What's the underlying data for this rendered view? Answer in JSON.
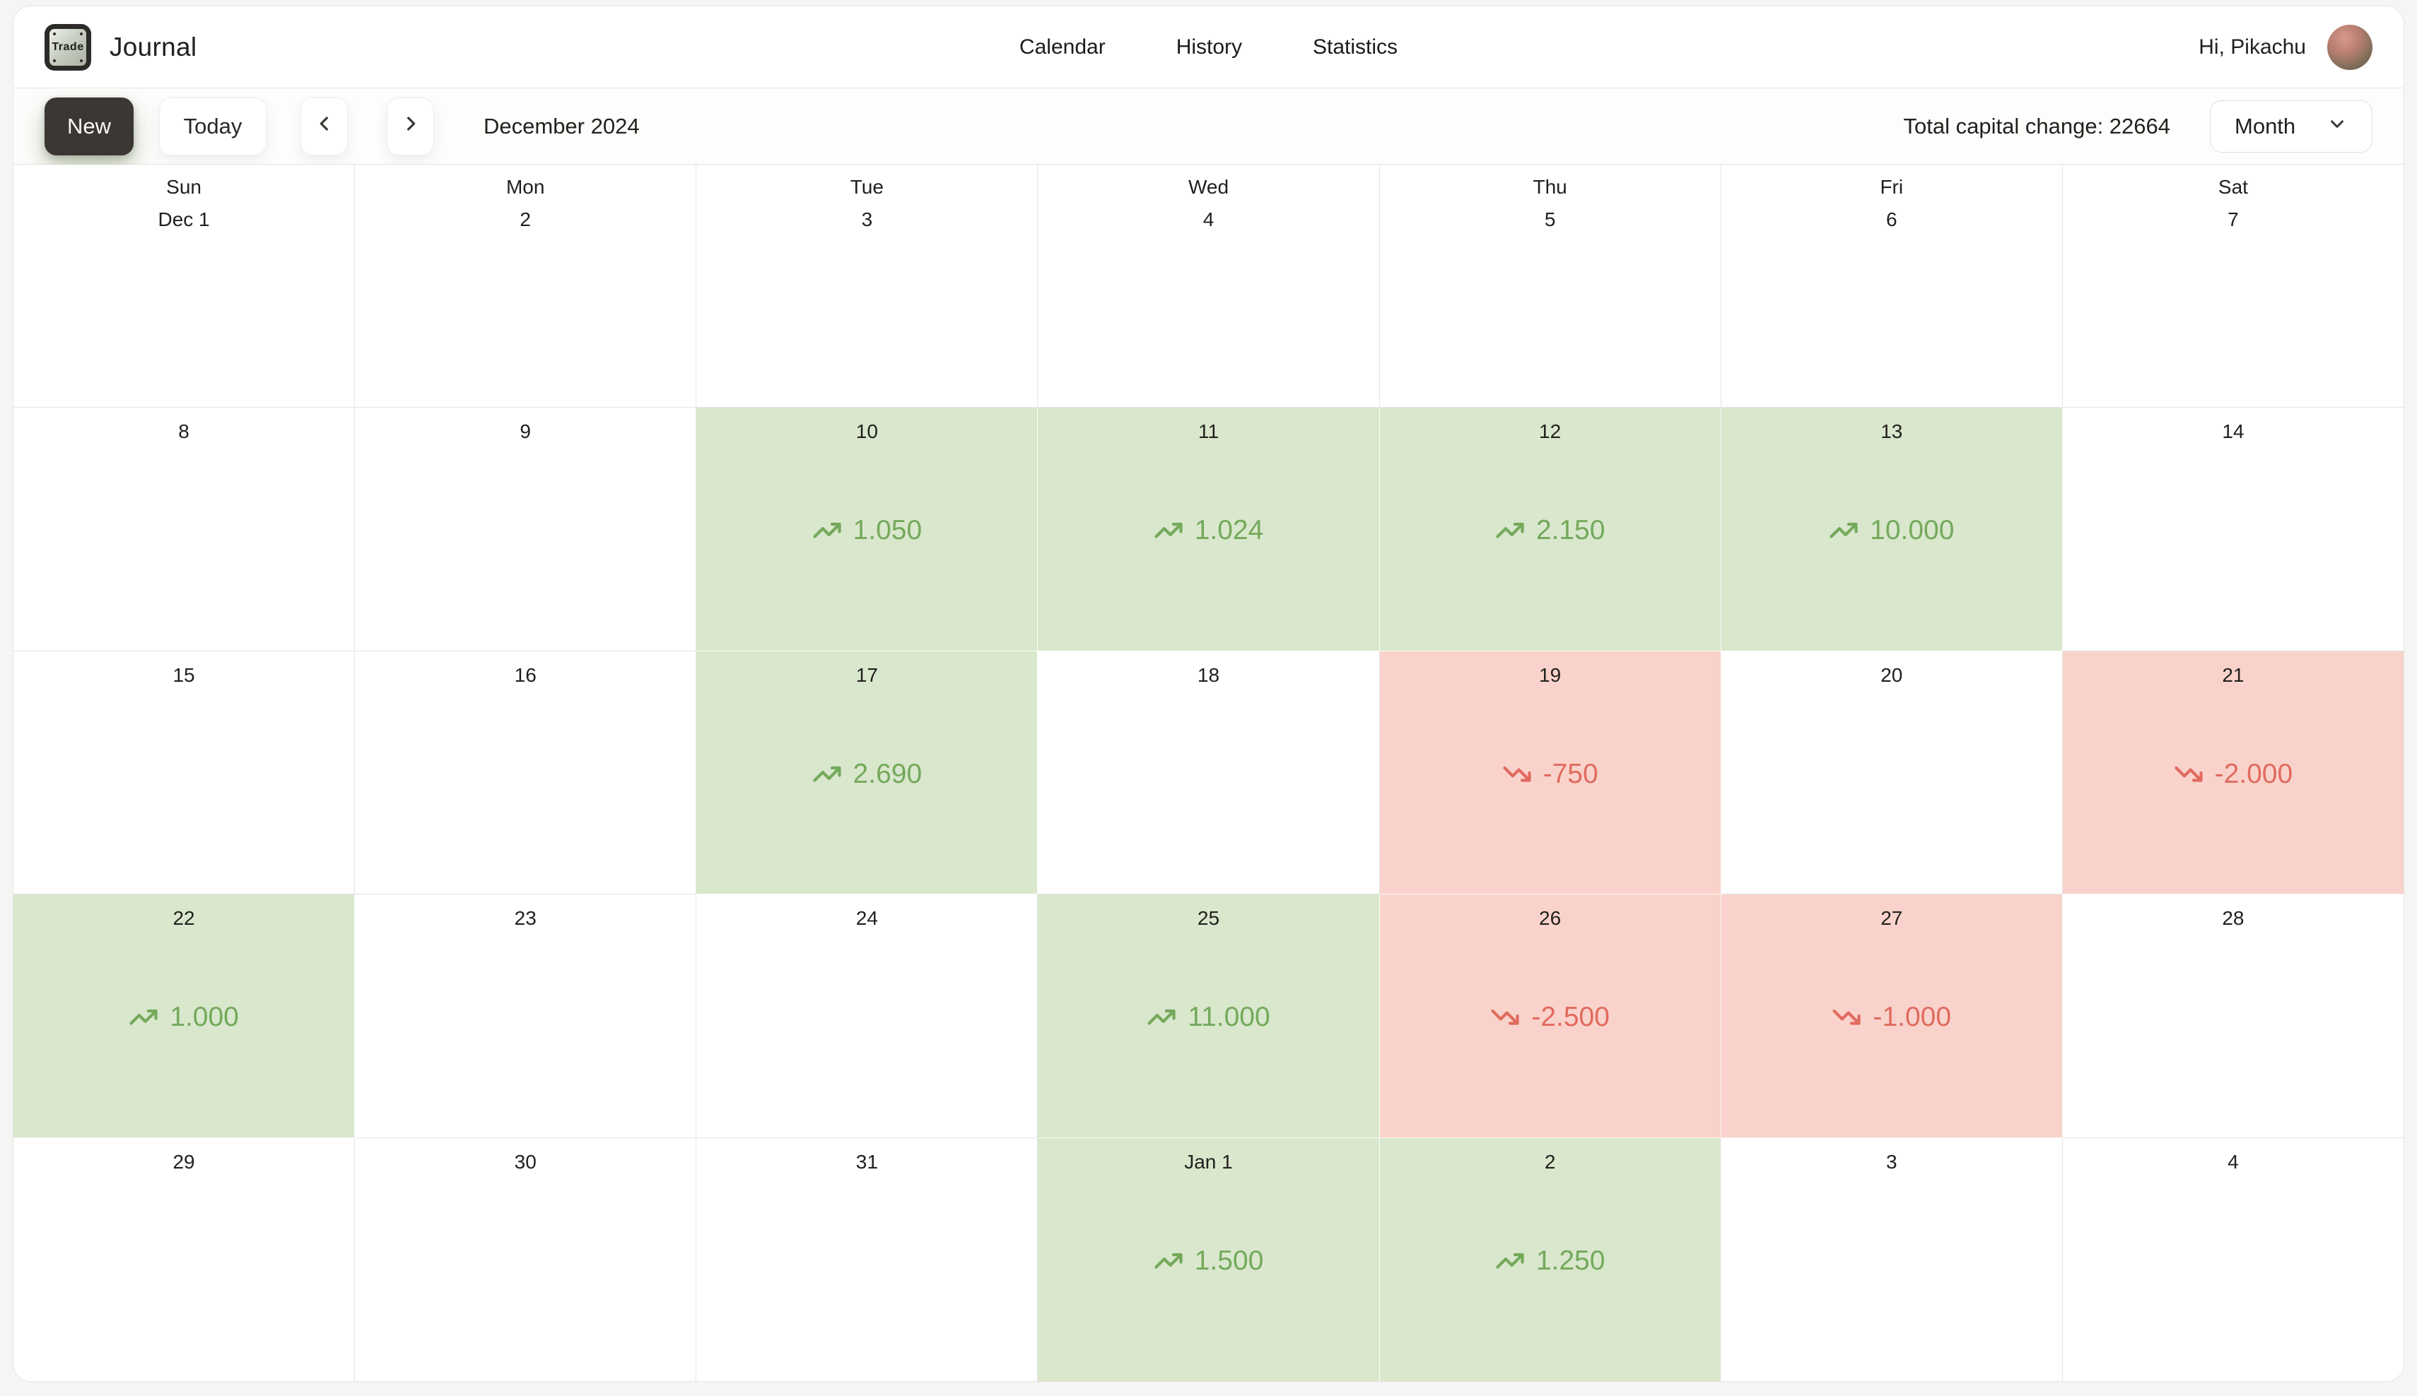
{
  "app": {
    "logo_text": "Trade",
    "title": "Journal"
  },
  "nav": {
    "items": [
      {
        "label": "Calendar"
      },
      {
        "label": "History"
      },
      {
        "label": "Statistics"
      }
    ]
  },
  "user": {
    "greeting": "Hi, Pikachu"
  },
  "toolbar": {
    "new_label": "New",
    "today_label": "Today",
    "period_label": "December 2024",
    "total_label": "Total capital change: 22664",
    "view_selected": "Month"
  },
  "calendar": {
    "weeks": [
      [
        {
          "day": "Sun",
          "date": "Dec 1"
        },
        {
          "day": "Mon",
          "date": "2"
        },
        {
          "day": "Tue",
          "date": "3"
        },
        {
          "day": "Wed",
          "date": "4"
        },
        {
          "day": "Thu",
          "date": "5"
        },
        {
          "day": "Fri",
          "date": "6"
        },
        {
          "day": "Sat",
          "date": "7"
        }
      ],
      [
        {
          "date": "8"
        },
        {
          "date": "9"
        },
        {
          "date": "10",
          "value": "1.050",
          "trend": "up"
        },
        {
          "date": "11",
          "value": "1.024",
          "trend": "up"
        },
        {
          "date": "12",
          "value": "2.150",
          "trend": "up"
        },
        {
          "date": "13",
          "value": "10.000",
          "trend": "up"
        },
        {
          "date": "14"
        }
      ],
      [
        {
          "date": "15"
        },
        {
          "date": "16"
        },
        {
          "date": "17",
          "value": "2.690",
          "trend": "up"
        },
        {
          "date": "18"
        },
        {
          "date": "19",
          "value": "-750",
          "trend": "down"
        },
        {
          "date": "20"
        },
        {
          "date": "21",
          "value": "-2.000",
          "trend": "down"
        }
      ],
      [
        {
          "date": "22",
          "value": "1.000",
          "trend": "up"
        },
        {
          "date": "23"
        },
        {
          "date": "24"
        },
        {
          "date": "25",
          "value": "11.000",
          "trend": "up"
        },
        {
          "date": "26",
          "value": "-2.500",
          "trend": "down"
        },
        {
          "date": "27",
          "value": "-1.000",
          "trend": "down"
        },
        {
          "date": "28"
        }
      ],
      [
        {
          "date": "29"
        },
        {
          "date": "30"
        },
        {
          "date": "31"
        },
        {
          "date": "Jan 1",
          "value": "1.500",
          "trend": "up"
        },
        {
          "date": "2",
          "value": "1.250",
          "trend": "up"
        },
        {
          "date": "3"
        },
        {
          "date": "4"
        }
      ]
    ]
  },
  "colors": {
    "gain_bg": "#d9e7cd",
    "gain_text": "#74a95b",
    "loss_bg": "#f9d3cb",
    "loss_text": "#e16a5e",
    "primary_button_bg": "#3b3734",
    "page_bg": "#f5f5f3",
    "grid_line": "#e4e4e2"
  }
}
